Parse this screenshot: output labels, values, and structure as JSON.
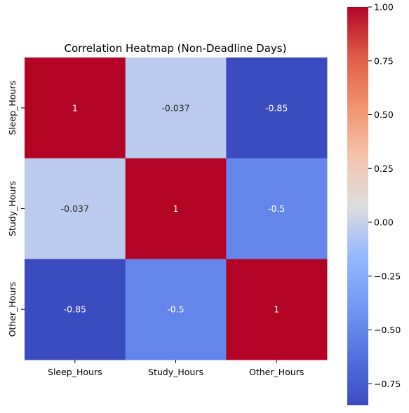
{
  "chart_data": {
    "type": "heatmap",
    "title": "Correlation Heatmap (Non-Deadline Days)",
    "xlabel": "",
    "ylabel": "",
    "x_categories": [
      "Sleep_Hours",
      "Study_Hours",
      "Other_Hours"
    ],
    "y_categories": [
      "Sleep_Hours",
      "Study_Hours",
      "Other_Hours"
    ],
    "values": [
      [
        1,
        -0.037,
        -0.85
      ],
      [
        -0.037,
        1,
        -0.5
      ],
      [
        -0.85,
        -0.5,
        1
      ]
    ],
    "cell_labels": [
      [
        "1",
        "-0.037",
        "-0.85"
      ],
      [
        "-0.037",
        "1",
        "-0.5"
      ],
      [
        "-0.85",
        "-0.5",
        "1"
      ]
    ],
    "colormap": "coolwarm",
    "colorbar": {
      "vmin": -0.85,
      "vmax": 1.0,
      "ticks": [
        1.0,
        0.75,
        0.5,
        0.25,
        0.0,
        -0.25,
        -0.5,
        -0.75
      ],
      "tick_labels": [
        "1.00",
        "0.75",
        "0.50",
        "0.25",
        "0.00",
        "−0.25",
        "−0.50",
        "−0.75"
      ],
      "placement": "right"
    },
    "grid": false
  }
}
